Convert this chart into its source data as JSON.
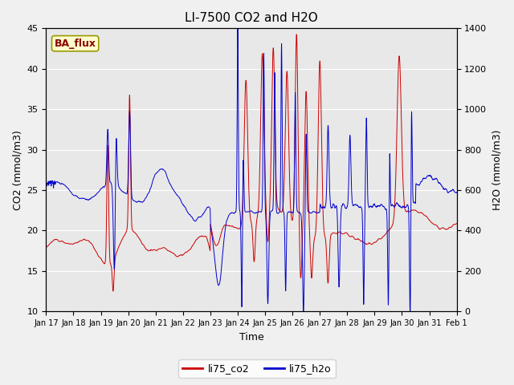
{
  "title": "LI-7500 CO2 and H2O",
  "xlabel": "Time",
  "ylabel_left": "CO2 (mmol/m3)",
  "ylabel_right": "H2O (mmol/m3)",
  "ylim_left": [
    10,
    45
  ],
  "ylim_right": [
    0,
    1400
  ],
  "yticks_left": [
    10,
    15,
    20,
    25,
    30,
    35,
    40,
    45
  ],
  "yticks_right": [
    0,
    200,
    400,
    600,
    800,
    1000,
    1200,
    1400
  ],
  "xtick_labels": [
    "Jan 17",
    "Jan 18",
    "Jan 19",
    "Jan 20",
    "Jan 21",
    "Jan 22",
    "Jan 23",
    "Jan 24",
    "Jan 25",
    "Jan 26",
    "Jan 27",
    "Jan 28",
    "Jan 29",
    "Jan 30",
    "Jan 31",
    "Feb 1"
  ],
  "color_co2": "#cc0000",
  "color_h2o": "#0000cc",
  "legend_co2": "li75_co2",
  "legend_h2o": "li75_h2o",
  "stamp_text": "BA_flux",
  "stamp_bg": "#ffffcc",
  "stamp_fg": "#8b0000",
  "stamp_edge": "#999900",
  "fig_bg": "#f0f0f0",
  "plot_bg": "#e8e8e8",
  "grid_color": "#ffffff",
  "title_fontsize": 11,
  "axis_fontsize": 9,
  "tick_fontsize": 8,
  "legend_fontsize": 9,
  "n_points": 4320,
  "days": 15
}
